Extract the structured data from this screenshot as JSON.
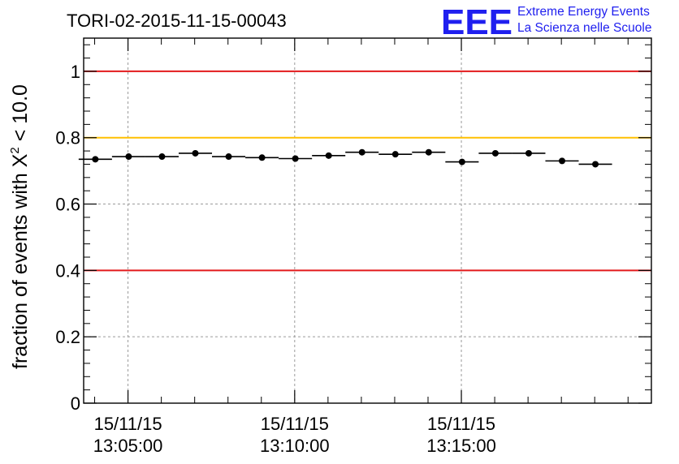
{
  "chart_data": {
    "type": "scatter",
    "title": "TORI-02-2015-11-15-00043",
    "ylabel_prefix": "fraction of events with ",
    "ylabel_symbol": "X",
    "ylabel_exponent": "2",
    "ylabel_suffix": " < 10.0",
    "xlabel": "",
    "ylim": [
      0,
      1.1
    ],
    "yticks": [
      0,
      0.2,
      0.4,
      0.6,
      0.8,
      1
    ],
    "ytick_labels": [
      "0",
      "0.2",
      "0.4",
      "0.6",
      "0.8",
      "1"
    ],
    "xlim_minutes": [
      -1.33,
      15.7
    ],
    "xticks": [
      {
        "minute": 0,
        "date": "15/11/15",
        "time": "13:05:00"
      },
      {
        "minute": 5,
        "date": "15/11/15",
        "time": "13:10:00"
      },
      {
        "minute": 10,
        "date": "15/11/15",
        "time": "13:15:00"
      }
    ],
    "grid": true,
    "reference_lines": [
      {
        "y": 1.0,
        "color": "#e31a1c"
      },
      {
        "y": 0.8,
        "color": "#ffc000"
      },
      {
        "y": 0.4,
        "color": "#e31a1c"
      }
    ],
    "bin_width_minutes": 1,
    "points": [
      {
        "x": -0.98,
        "y": 0.735
      },
      {
        "x": 0.02,
        "y": 0.743
      },
      {
        "x": 1.02,
        "y": 0.743
      },
      {
        "x": 2.02,
        "y": 0.753
      },
      {
        "x": 3.02,
        "y": 0.743
      },
      {
        "x": 4.02,
        "y": 0.74
      },
      {
        "x": 5.02,
        "y": 0.737
      },
      {
        "x": 6.02,
        "y": 0.746
      },
      {
        "x": 7.02,
        "y": 0.756
      },
      {
        "x": 8.02,
        "y": 0.75
      },
      {
        "x": 9.02,
        "y": 0.756
      },
      {
        "x": 10.02,
        "y": 0.727
      },
      {
        "x": 11.02,
        "y": 0.753
      },
      {
        "x": 12.02,
        "y": 0.753
      },
      {
        "x": 13.02,
        "y": 0.73
      },
      {
        "x": 14.02,
        "y": 0.72
      }
    ]
  },
  "logo": {
    "mark": "EEE",
    "line1": "Extreme Energy Events",
    "line2": "La Scienza nelle Scuole"
  },
  "colors": {
    "logo": "#1f1fef",
    "grid": "#9a9a9a",
    "axis": "#000000"
  }
}
